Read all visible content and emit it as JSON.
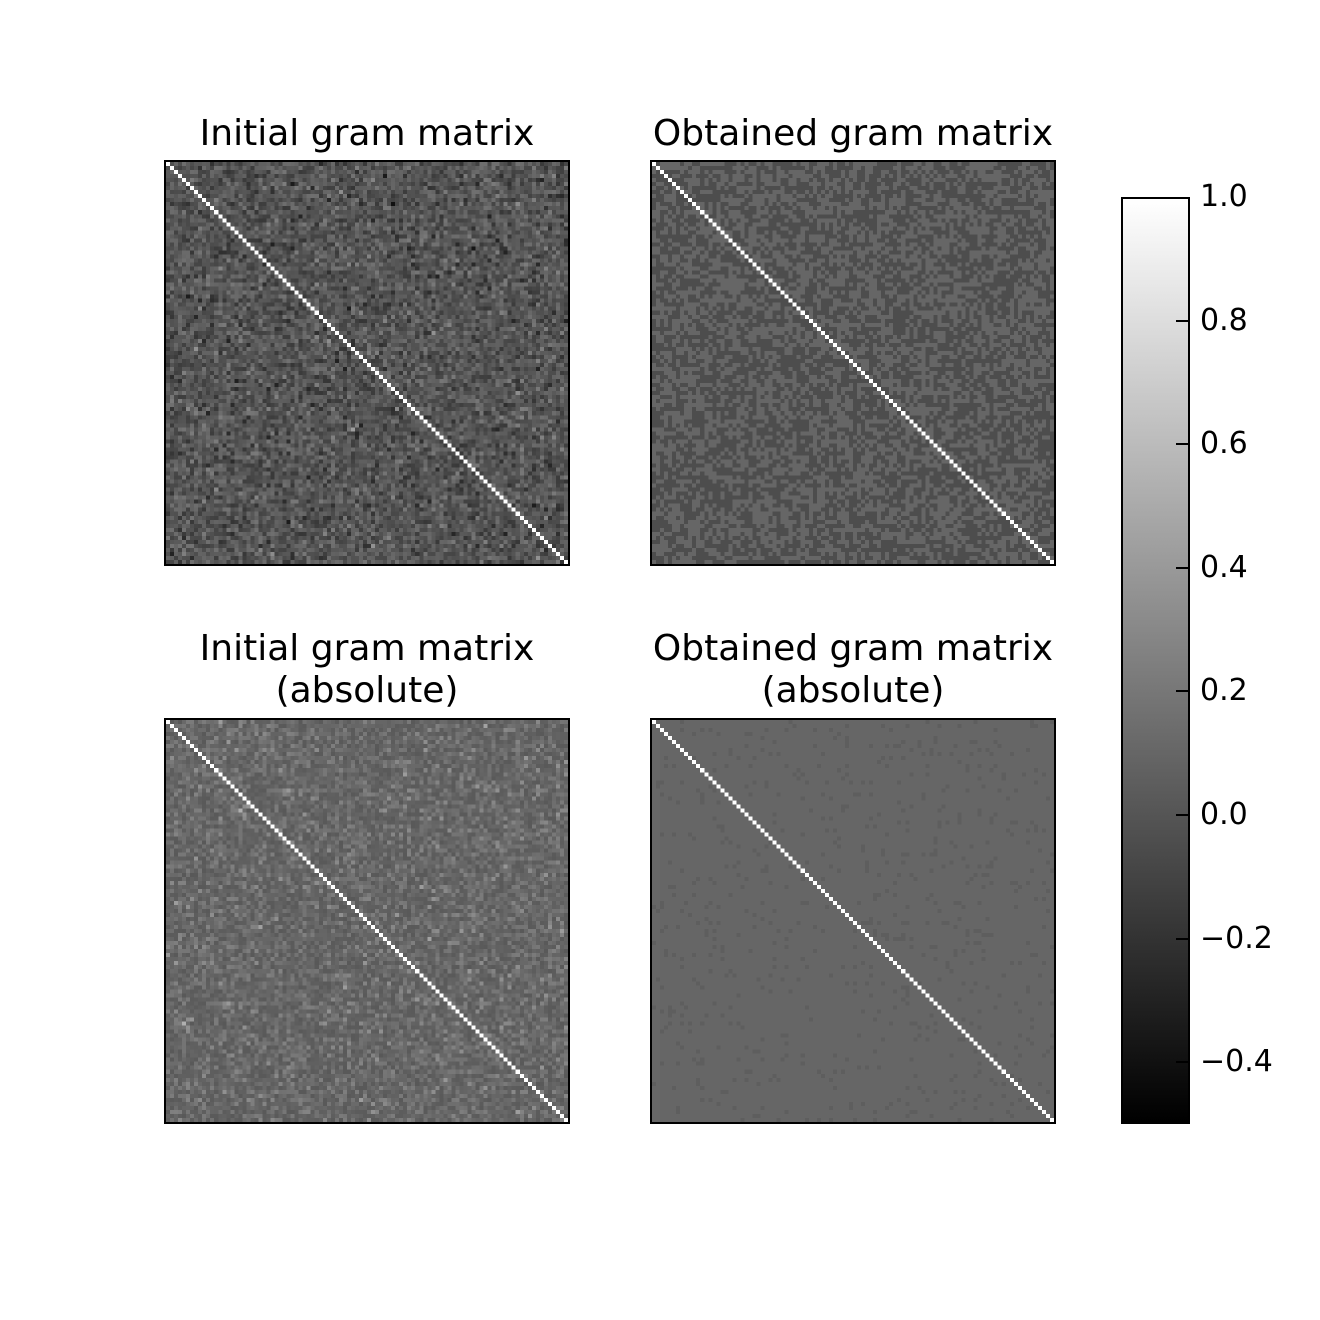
{
  "chart_data": [
    {
      "type": "heatmap",
      "title": "Initial gram matrix",
      "subtitle": "",
      "matrix_size": 100,
      "diagonal_value": 1.0,
      "off_diagonal_mean": 0.0,
      "off_diagonal_spread": 0.1
    },
    {
      "type": "heatmap",
      "title": "Obtained gram matrix",
      "subtitle": "",
      "matrix_size": 100,
      "diagonal_value": 1.0,
      "off_diagonal_levels": [
        -0.05,
        0.1
      ]
    },
    {
      "type": "heatmap",
      "title": "Initial gram matrix",
      "subtitle": "(absolute)",
      "matrix_size": 100,
      "diagonal_value": 1.0,
      "off_diagonal_mean": 0.1,
      "off_diagonal_spread": 0.12
    },
    {
      "type": "heatmap",
      "title": "Obtained gram matrix",
      "subtitle": "(absolute)",
      "matrix_size": 100,
      "diagonal_value": 1.0,
      "off_diagonal_levels": [
        0.1,
        0.05
      ]
    }
  ],
  "colorbar": {
    "colormap": "gray",
    "vmin": -0.5,
    "vmax": 1.0,
    "ticks": [
      1.0,
      0.8,
      0.6,
      0.4,
      0.2,
      0.0,
      -0.2,
      -0.4
    ],
    "tick_labels": [
      "1.0",
      "0.8",
      "0.6",
      "0.4",
      "0.2",
      "0.0",
      "−0.2",
      "−0.4"
    ]
  }
}
